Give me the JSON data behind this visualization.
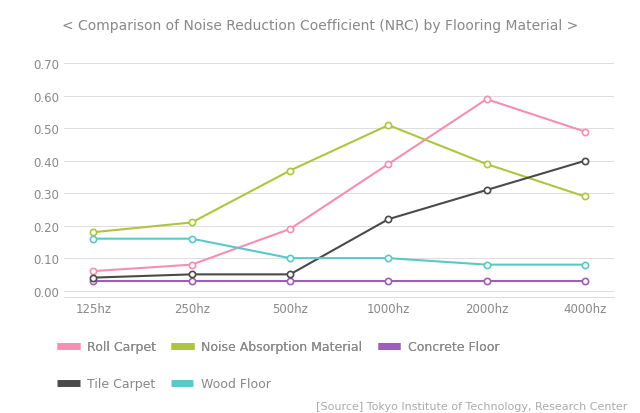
{
  "title": "< Comparison of Noise Reduction Coefficient (NRC) by Flooring Material >",
  "source": "[Source] Tokyo Institute of Technology, Research Center",
  "x_labels": [
    "125hz",
    "250hz",
    "500hz",
    "1000hz",
    "2000hz",
    "4000hz"
  ],
  "series_order": [
    "Roll Carpet",
    "Noise Absorption Material",
    "Concrete Floor",
    "Tile Carpet",
    "Wood Floor"
  ],
  "series": {
    "Roll Carpet": {
      "values": [
        0.06,
        0.08,
        0.19,
        0.39,
        0.59,
        0.49
      ],
      "color": "#f48fb1"
    },
    "Noise Absorption Material": {
      "values": [
        0.18,
        0.21,
        0.37,
        0.51,
        0.39,
        0.29
      ],
      "color": "#aec63f"
    },
    "Concrete Floor": {
      "values": [
        0.03,
        0.03,
        0.03,
        0.03,
        0.03,
        0.03
      ],
      "color": "#9c5eb6"
    },
    "Tile Carpet": {
      "values": [
        0.04,
        0.05,
        0.05,
        0.22,
        0.31,
        0.4
      ],
      "color": "#4a4a4a"
    },
    "Wood Floor": {
      "values": [
        0.16,
        0.16,
        0.1,
        0.1,
        0.08,
        0.08
      ],
      "color": "#5bc8c8"
    }
  },
  "ylim": [
    -0.02,
    0.72
  ],
  "yticks": [
    0.0,
    0.1,
    0.2,
    0.3,
    0.4,
    0.5,
    0.6,
    0.7
  ],
  "bg_color": "#ffffff",
  "plot_bg_color": "#ffffff",
  "grid_color": "#dddddd",
  "border_color": "#cccccc",
  "title_fontsize": 10,
  "axis_fontsize": 8.5,
  "legend_fontsize": 9,
  "source_fontsize": 8,
  "tick_color": "#888888",
  "legend_row1": [
    "Roll Carpet",
    "Noise Absorption Material",
    "Concrete Floor"
  ],
  "legend_row2": [
    "Tile Carpet",
    "Wood Floor"
  ]
}
